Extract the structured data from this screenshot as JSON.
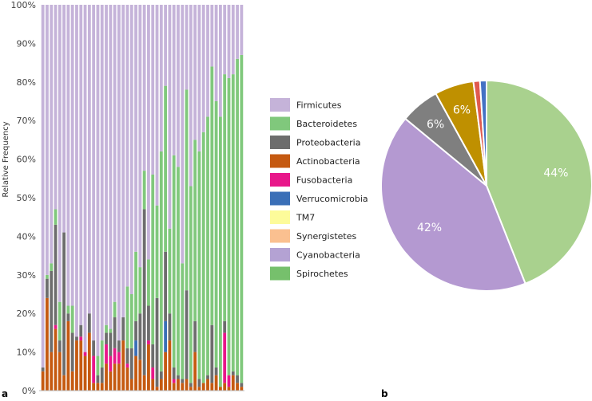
{
  "colors": {
    "Firmicutes": "#c5b3d9",
    "Bacteroidetes": "#80c87c",
    "Proteobacteria": "#6d6d6d",
    "Actinobacteria": "#c55a11",
    "Fusobacteria": "#e8178a",
    "Verrucomicrobia": "#3a6fb7",
    "TM7": "#fdfb9a",
    "Synergistetes": "#fac090",
    "Cyanobacteria": "#b4a2d3",
    "Spirochetes": "#76c06c",
    "pie_green": "#a9d18e",
    "pie_purple": "#b499d1",
    "pie_gray": "#7f7f7f",
    "pie_gold": "#bf9000",
    "pie_red": "#e05a4f",
    "pie_blue": "#4472c4"
  },
  "chart_data": [
    {
      "type": "bar",
      "stacked": true,
      "panel_label": "a",
      "ylabel": "Relative Frequency",
      "ylim": [
        0,
        100
      ],
      "yticks": [
        "0%",
        "10%",
        "20%",
        "30%",
        "40%",
        "50%",
        "60%",
        "70%",
        "80%",
        "90%",
        "100%"
      ],
      "legend_position": "right",
      "legend": [
        "Firmicutes",
        "Bacteroidetes",
        "Proteobacteria",
        "Actinobacteria",
        "Fusobacteria",
        "Verrucomicrobia",
        "TM7",
        "Synergistetes",
        "Cyanobacteria",
        "Spirochetes"
      ],
      "n_samples": 48,
      "series": [
        {
          "name": "Actinobacteria",
          "values": [
            5,
            24,
            10,
            16,
            10,
            4,
            18,
            5,
            13,
            13,
            9,
            15,
            2,
            2,
            2,
            7,
            5,
            7,
            7,
            13,
            6,
            3,
            9,
            8,
            4,
            12,
            3,
            1,
            3,
            10,
            13,
            2,
            3,
            2,
            3,
            1,
            10,
            1,
            2,
            3,
            2,
            4,
            1,
            2,
            1,
            4,
            2,
            1
          ]
        },
        {
          "name": "Fusobacteria",
          "values": [
            0,
            0,
            0,
            1,
            0,
            0,
            0,
            0,
            0,
            1,
            1,
            0,
            7,
            0,
            0,
            5,
            4,
            4,
            3,
            0,
            1,
            0,
            0,
            0,
            0,
            1,
            3,
            0,
            0,
            0,
            0,
            1,
            0,
            0,
            0,
            0,
            0,
            0,
            0,
            0,
            0,
            0,
            0,
            13,
            3,
            0,
            0,
            0
          ]
        },
        {
          "name": "Verrucomicrobia",
          "values": [
            0,
            0,
            0,
            0,
            0,
            0,
            0,
            0,
            0,
            0,
            0,
            0,
            0,
            0,
            0,
            0,
            0,
            0,
            0,
            0,
            0,
            0,
            4,
            0,
            0,
            0,
            0,
            0,
            0,
            8,
            0,
            0,
            0,
            0,
            0,
            0,
            0,
            0,
            0,
            0,
            0,
            0,
            0,
            0,
            0,
            0,
            0,
            0
          ]
        },
        {
          "name": "Proteobacteria",
          "values": [
            1,
            5,
            21,
            26,
            3,
            37,
            2,
            10,
            1,
            3,
            0,
            5,
            4,
            2,
            4,
            3,
            6,
            8,
            3,
            6,
            4,
            8,
            5,
            12,
            43,
            9,
            6,
            23,
            2,
            18,
            7,
            3,
            1,
            1,
            23,
            1,
            8,
            2,
            0,
            1,
            15,
            2,
            0,
            3,
            0,
            1,
            2,
            1
          ]
        },
        {
          "name": "Bacteroidetes",
          "values": [
            0,
            1,
            2,
            4,
            10,
            0,
            2,
            7,
            0,
            0,
            0,
            0,
            0,
            5,
            7,
            2,
            1,
            4,
            0,
            0,
            16,
            14,
            18,
            12,
            10,
            12,
            44,
            24,
            57,
            43,
            22,
            55,
            54,
            30,
            52,
            51,
            47,
            59,
            65,
            67,
            67,
            69,
            70,
            64,
            77,
            77,
            82,
            85
          ]
        },
        {
          "name": "Firmicutes",
          "values": [
            94,
            70,
            67,
            53,
            77,
            59,
            78,
            78,
            86,
            83,
            90,
            80,
            87,
            91,
            87,
            83,
            84,
            77,
            87,
            81,
            73,
            75,
            64,
            68,
            43,
            66,
            44,
            52,
            38,
            21,
            58,
            39,
            42,
            67,
            22,
            47,
            35,
            38,
            33,
            29,
            16,
            25,
            29,
            18,
            19,
            18,
            14,
            13
          ]
        }
      ]
    },
    {
      "type": "pie",
      "panel_label": "b",
      "slices": [
        {
          "name": "Bacteroidetes",
          "value": 44,
          "label": "44%",
          "color_key": "pie_green"
        },
        {
          "name": "Firmicutes",
          "value": 42,
          "label": "42%",
          "color_key": "pie_purple"
        },
        {
          "name": "Proteobacteria",
          "value": 6,
          "label": "6%",
          "color_key": "pie_gray"
        },
        {
          "name": "Actinobacteria",
          "value": 6,
          "label": "6%",
          "color_key": "pie_gold"
        },
        {
          "name": "Fusobacteria",
          "value": 1,
          "label": "",
          "color_key": "pie_red"
        },
        {
          "name": "Verrucomicrobia",
          "value": 1,
          "label": "",
          "color_key": "pie_blue"
        }
      ]
    }
  ]
}
